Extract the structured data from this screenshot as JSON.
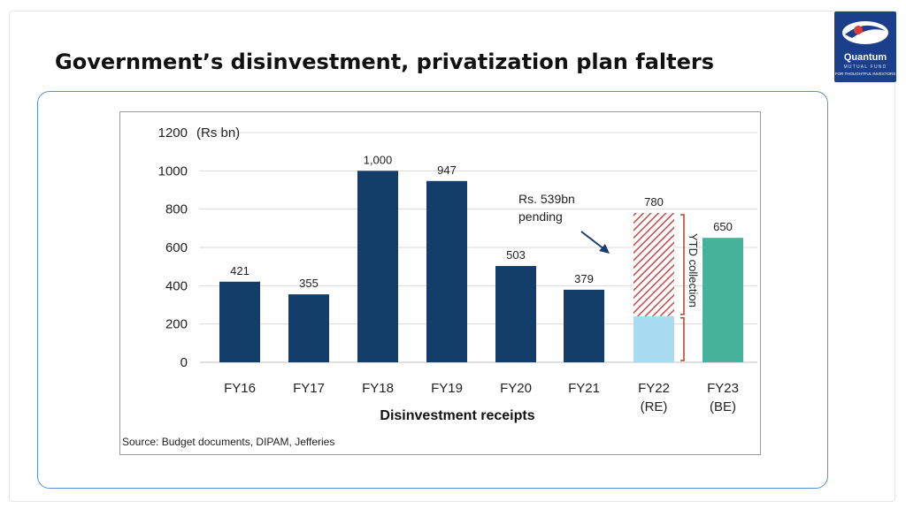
{
  "slide": {
    "title": "Government’s disinvestment, privatization plan falters"
  },
  "logo": {
    "name": "Quantum",
    "sub": "MUTUAL FUND",
    "tagline": "FOR THOUGHTFUL INVESTORS"
  },
  "chart_data": {
    "type": "bar",
    "categories": [
      "FY16",
      "FY17",
      "FY18",
      "FY19",
      "FY20",
      "FY21",
      "FY22\n(RE)",
      "FY23\n(BE)"
    ],
    "values": [
      421,
      355,
      1000,
      947,
      503,
      379,
      780,
      650
    ],
    "value_labels": [
      "421",
      "355",
      "1,000",
      "947",
      "503",
      "379",
      "780",
      "650"
    ],
    "fy22_breakdown": {
      "ytd_collection": 241,
      "pending": 539
    },
    "unit_label": "(Rs bn)",
    "xlabel": "Disinvestment receipts",
    "ylabel": "",
    "ylim": [
      0,
      1200
    ],
    "yticks": [
      0,
      200,
      400,
      600,
      800,
      1000,
      1200
    ],
    "grid": true,
    "annotations": {
      "pending_text": [
        "Rs. 539bn",
        "pending"
      ],
      "ytd_text": "YTD collection"
    },
    "source": "Source: Budget documents, DIPAM, Jefferies",
    "colors": {
      "bar": "#133e6a",
      "ytd": "#a9dcf0",
      "pending_hatch": "#c94a4a",
      "be": "#45b39a",
      "grid": "#d9d9d9",
      "bracket": "#c0392b"
    }
  }
}
